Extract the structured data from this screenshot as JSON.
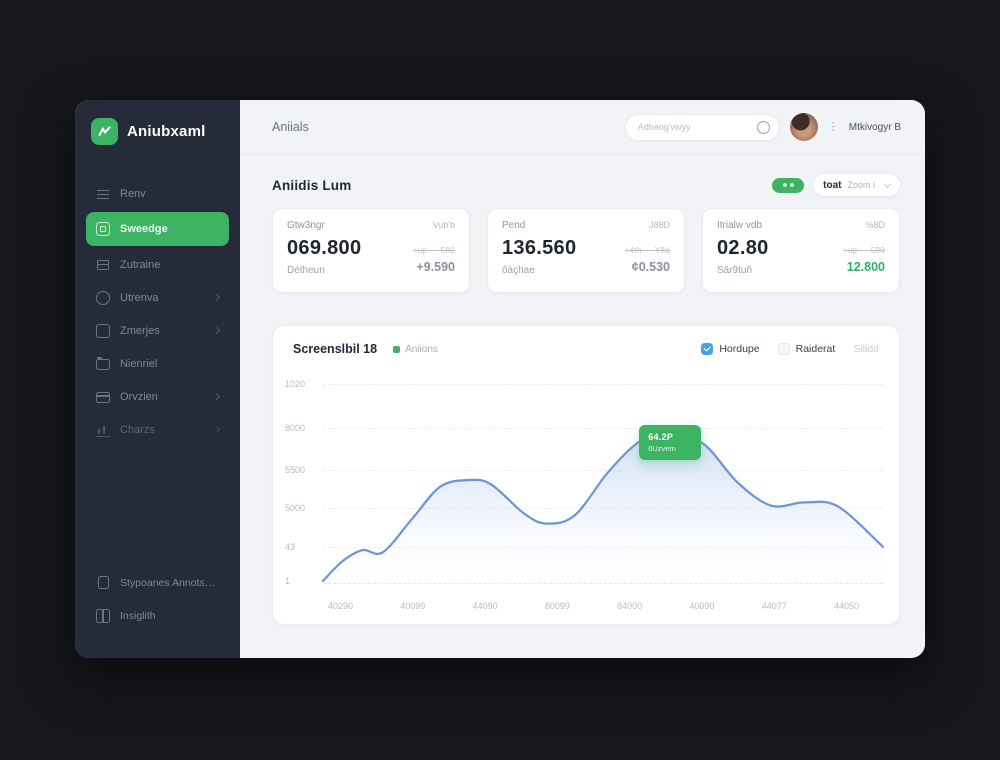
{
  "colors": {
    "accent": "#3db463",
    "blue-line": "#6e95d8",
    "blue-cb": "#45a4e6",
    "side-bg": "#262b3a"
  },
  "sidebar": {
    "logo_text": "Aniubxaml",
    "items": [
      {
        "label": "Renv",
        "icon": "menu-icon",
        "active": false
      },
      {
        "label": "Sweedge",
        "icon": "dashboard-icon",
        "active": true
      },
      {
        "label": "Zutraine",
        "icon": "layers-icon",
        "active": false
      },
      {
        "label": "Utrenva",
        "icon": "clock-icon",
        "active": false
      },
      {
        "label": "Zmerjes",
        "icon": "box-icon",
        "active": false
      },
      {
        "label": "Nienriel",
        "icon": "folder-icon",
        "active": false
      },
      {
        "label": "Orvzien",
        "icon": "card-icon",
        "active": false
      },
      {
        "label": "Charzs",
        "icon": "chart-icon",
        "active": false
      }
    ],
    "footer_items": [
      {
        "label": "Stypoanes Annotssnon",
        "icon": "document-icon"
      },
      {
        "label": "Insiglith",
        "icon": "columns-icon"
      }
    ]
  },
  "header": {
    "breadcrumb": "Aniials",
    "search_placeholder": "Adbaog'vwyy",
    "user_name": "Mtkivogyr B"
  },
  "page": {
    "title": "Aniidis Lum",
    "range_bold": "toat",
    "range_light": "Zoom i"
  },
  "stat_cards": [
    {
      "label": "Gtw3ngr",
      "corner": "Vub'b",
      "value": "069.800",
      "sublabel": "Détheun",
      "delta_line": "+up — 580",
      "delta_value": "+9.590",
      "delta_tone": "gray"
    },
    {
      "label": "Pend",
      "corner": "J88D",
      "value": "136.560",
      "sublabel": "ôàçhae",
      "delta_line": "+4th — Y8d",
      "delta_value": "¢0.530",
      "delta_tone": "gray"
    },
    {
      "label": "Itrialw vdb",
      "corner": "%8D",
      "value": "02.80",
      "sublabel": "Sär9tuñ",
      "delta_line": "+up — 500",
      "delta_value": "12.800",
      "delta_tone": "green"
    }
  ],
  "chart_card": {
    "title": "Screenslbil 18",
    "legend_label": "Aniions",
    "toggles": [
      {
        "label": "Hordupe",
        "checked": true
      },
      {
        "label": "Raiderat",
        "checked": false
      },
      {
        "label": "Silidd",
        "checked": null
      }
    ]
  },
  "chart_data": {
    "type": "area",
    "title": "Screenslbil 18",
    "legend": [
      "Aniions"
    ],
    "y_tick_labels": [
      "1020",
      "8000",
      "5500",
      "5000",
      "43",
      "1"
    ],
    "x_tick_labels": [
      "40290",
      "40099",
      "44090",
      "80099",
      "84000",
      "40090",
      "44077",
      "44050"
    ],
    "points": [
      [
        0,
        1.5
      ],
      [
        3.6,
        11
      ],
      [
        7.1,
        16
      ],
      [
        10.7,
        15
      ],
      [
        16,
        31
      ],
      [
        21,
        46
      ],
      [
        26,
        49
      ],
      [
        30,
        47
      ],
      [
        36,
        33
      ],
      [
        40,
        28.5
      ],
      [
        45,
        32.5
      ],
      [
        51,
        53
      ],
      [
        57,
        68
      ],
      [
        62.5,
        70
      ],
      [
        68,
        66
      ],
      [
        74,
        48
      ],
      [
        80,
        37
      ],
      [
        86,
        38.5
      ],
      [
        92,
        36.5
      ],
      [
        100,
        17.5
      ]
    ],
    "tooltip": {
      "value": "64.2P",
      "label": "0Uzvem"
    },
    "grid": "horizontal-dashed",
    "line_color": "#6e95d8",
    "ylim_note": "values rendered as % of plot height"
  }
}
